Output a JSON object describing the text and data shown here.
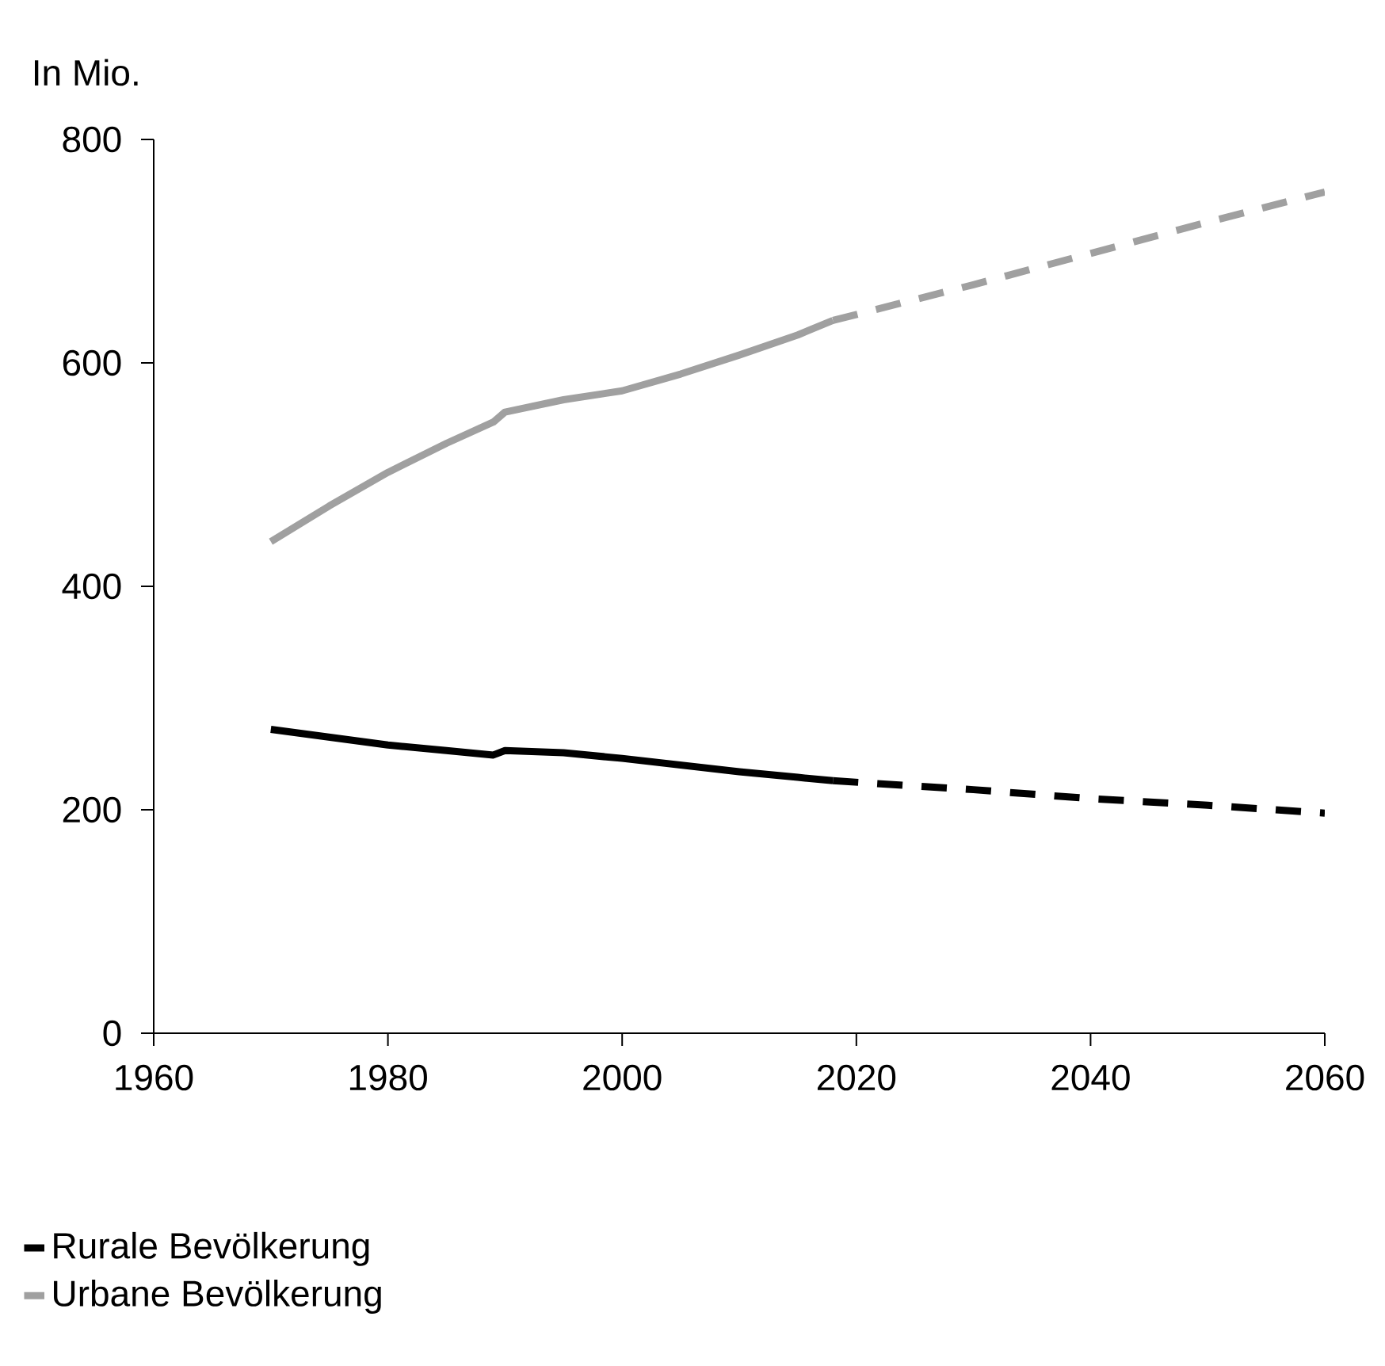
{
  "chart_data": {
    "type": "line",
    "ylabel": "In Mio.",
    "xlim": [
      1960,
      2060
    ],
    "xticks": [
      1960,
      1980,
      2000,
      2020,
      2040,
      2060
    ],
    "ylim": [
      0,
      800
    ],
    "yticks": [
      0,
      200,
      400,
      600,
      800
    ],
    "grid": false,
    "legend": "bottom left",
    "marker": "none",
    "series": [
      {
        "name": "Rurale Bevölkerung",
        "color": "#000000",
        "line_style": "solid",
        "x": [
          1970,
          1975,
          1980,
          1985,
          1989,
          1990,
          1995,
          2000,
          2005,
          2010,
          2015,
          2018
        ],
        "values": [
          272,
          265,
          258,
          253,
          249,
          253,
          251,
          246,
          240,
          234,
          229,
          226
        ]
      },
      {
        "color": "#000000",
        "line_style": "dashed",
        "x": [
          2018,
          2030,
          2040,
          2050,
          2060
        ],
        "values": [
          226,
          218,
          210,
          204,
          197
        ]
      },
      {
        "name": "Urbane Bevölkerung",
        "color": "#a0a0a0",
        "line_style": "solid",
        "x": [
          1970,
          1975,
          1980,
          1985,
          1989,
          1990,
          1995,
          2000,
          2005,
          2010,
          2015,
          2018
        ],
        "values": [
          440,
          472,
          502,
          528,
          547,
          556,
          567,
          575,
          590,
          607,
          625,
          638
        ]
      },
      {
        "color": "#a0a0a0",
        "line_style": "dashed",
        "x": [
          2018,
          2030,
          2040,
          2050,
          2060
        ],
        "values": [
          638,
          670,
          698,
          726,
          753
        ]
      }
    ]
  }
}
